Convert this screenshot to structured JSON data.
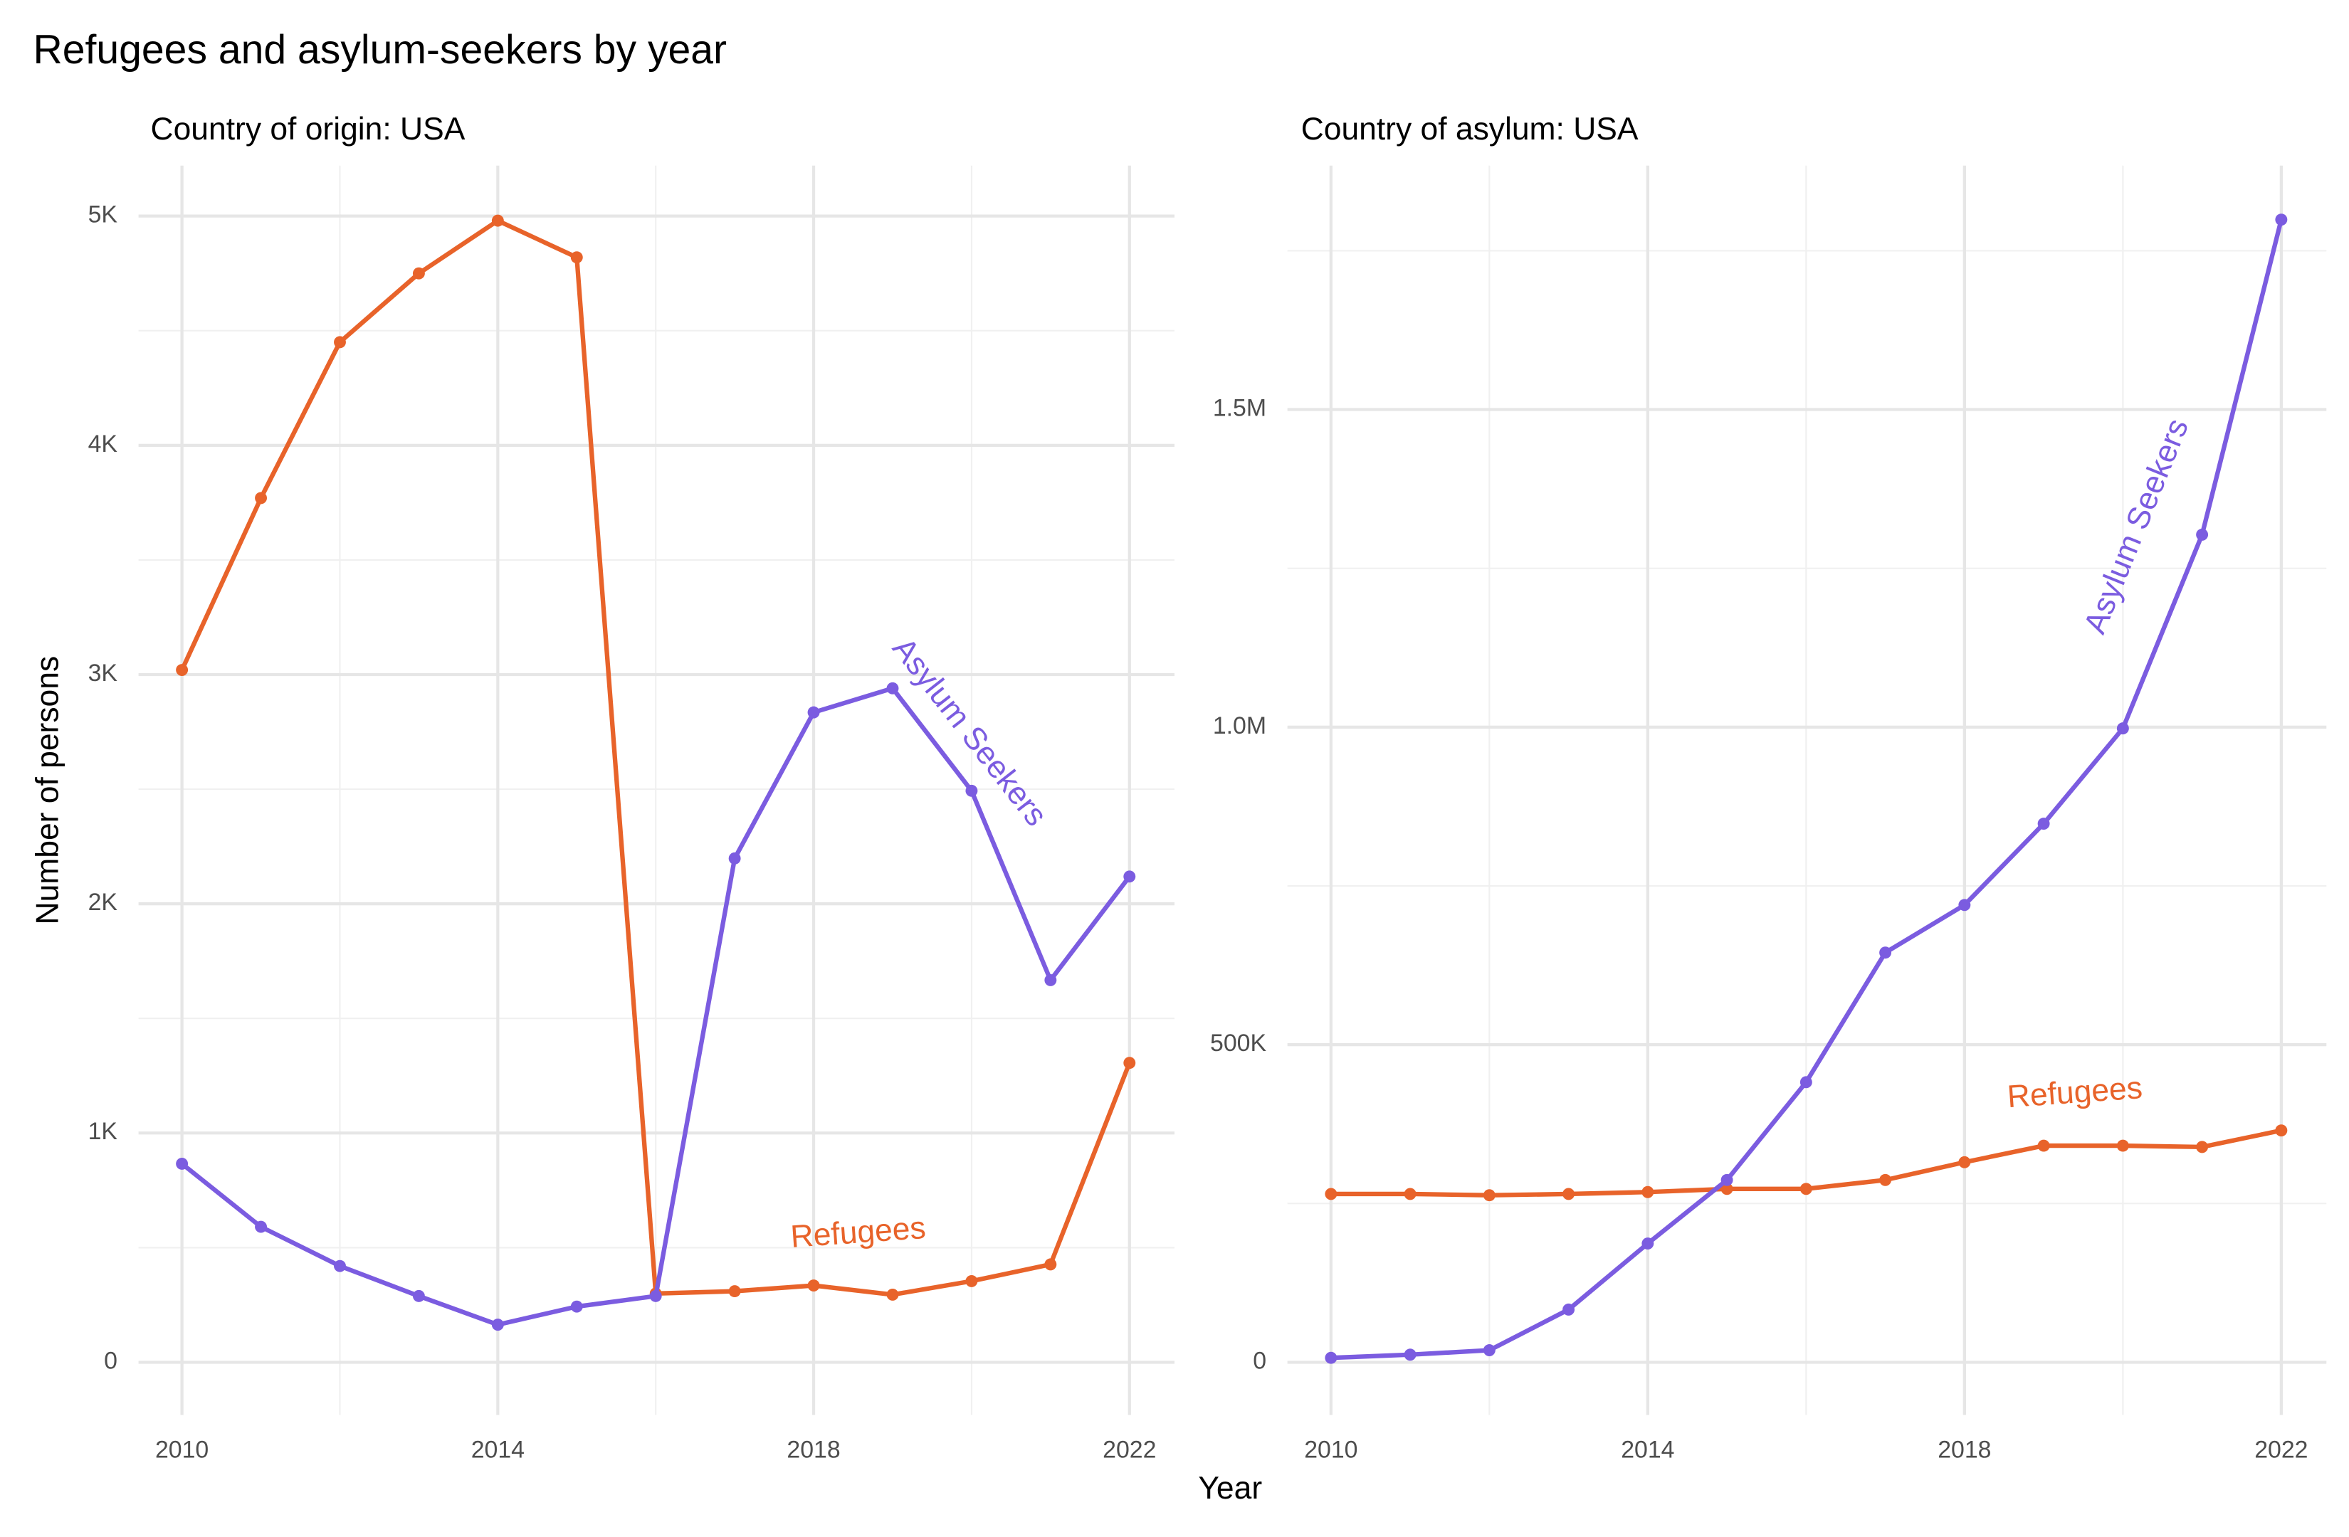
{
  "title": "Refugees and asylum-seekers by year",
  "x_label": "Year",
  "y_label": "Number of persons",
  "chart_data": [
    {
      "type": "line",
      "title": "Country of origin: USA",
      "x": [
        2010,
        2011,
        2012,
        2013,
        2014,
        2015,
        2016,
        2017,
        2018,
        2019,
        2020,
        2021,
        2022
      ],
      "series": [
        {
          "name": "Refugees",
          "color": "#e8632a",
          "values": [
            3020,
            3770,
            4450,
            4750,
            4980,
            4820,
            300,
            310,
            335,
            295,
            354,
            427,
            1306
          ]
        },
        {
          "name": "Asylum Seekers",
          "color": "#7b5ce0",
          "values": [
            866,
            591,
            420,
            289,
            164,
            243,
            289,
            2198,
            2835,
            2940,
            2493,
            1667,
            2119
          ]
        }
      ],
      "xlim": [
        2009.45,
        2022.57
      ],
      "xticks": [
        2010,
        2014,
        2018,
        2022
      ],
      "xminor": [
        2012,
        2016,
        2020
      ],
      "ylim": [
        -230,
        5220
      ],
      "yticks": [
        0,
        {
          "value": 1000,
          "label": "1K"
        },
        {
          "value": 2000,
          "label": "2K"
        },
        {
          "value": 3000,
          "label": "3K"
        },
        {
          "value": 4000,
          "label": "4K"
        },
        {
          "value": 5000,
          "label": "5K"
        }
      ],
      "yminor": [
        500,
        1500,
        2500,
        3500,
        4500
      ],
      "grid": true
    },
    {
      "type": "line",
      "title": "Country of asylum: USA",
      "x": [
        2010,
        2011,
        2012,
        2013,
        2014,
        2015,
        2016,
        2017,
        2018,
        2019,
        2020,
        2021,
        2022
      ],
      "series": [
        {
          "name": "Refugees",
          "color": "#e8632a",
          "values": [
            265000,
            265000,
            263000,
            265000,
            268000,
            273000,
            273000,
            287000,
            315000,
            341000,
            341000,
            339000,
            365000
          ]
        },
        {
          "name": "Asylum Seekers",
          "color": "#7b5ce0",
          "values": [
            7000,
            12000,
            19000,
            83000,
            187000,
            287000,
            441000,
            645000,
            720000,
            848000,
            998000,
            1303000,
            1799000
          ]
        }
      ],
      "xlim": [
        2009.45,
        2022.57
      ],
      "xticks": [
        2010,
        2014,
        2018,
        2022
      ],
      "xminor": [
        2012,
        2016,
        2020
      ],
      "ylim": [
        -83000,
        1884000
      ],
      "yticks": [
        0,
        {
          "value": 500000,
          "label": "500K"
        },
        {
          "value": 1000000,
          "label": "1.0M"
        },
        {
          "value": 1500000,
          "label": "1.5M"
        }
      ],
      "yminor": [
        250000,
        750000,
        1250000,
        1750000
      ],
      "grid": true
    }
  ]
}
